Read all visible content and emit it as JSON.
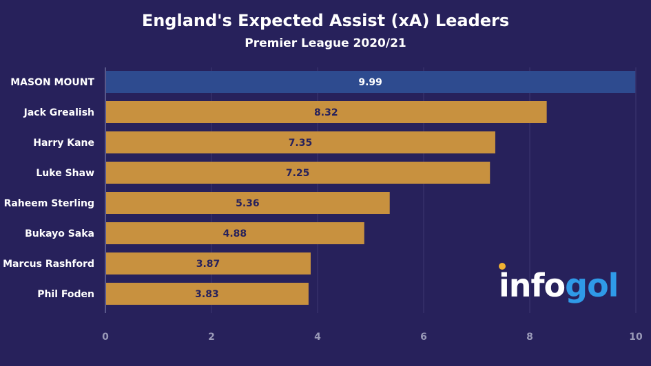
{
  "chart_data": {
    "type": "bar",
    "orientation": "horizontal",
    "title": "England's Expected Assist (xA) Leaders",
    "subtitle": "Premier League 2020/21",
    "categories": [
      "MASON MOUNT",
      "Jack Grealish",
      "Harry Kane",
      "Luke Shaw",
      "Raheem Sterling",
      "Bukayo Saka",
      "Marcus Rashford",
      "Phil Foden"
    ],
    "values": [
      9.99,
      8.32,
      7.35,
      7.25,
      5.36,
      4.88,
      3.87,
      3.83
    ],
    "highlight_index": 0,
    "xlim": [
      0,
      10
    ],
    "xticks": [
      0,
      2,
      4,
      6,
      8,
      10
    ],
    "grid": true,
    "colors": {
      "background": "#27215b",
      "highlight": "#2e4b8f",
      "bar": "#c8913f",
      "value_label": "#27215b",
      "highlight_label": "#ffffff",
      "tick": "#9a9ab8"
    }
  },
  "logo": {
    "text_white": "info",
    "text_blue": "gol"
  }
}
